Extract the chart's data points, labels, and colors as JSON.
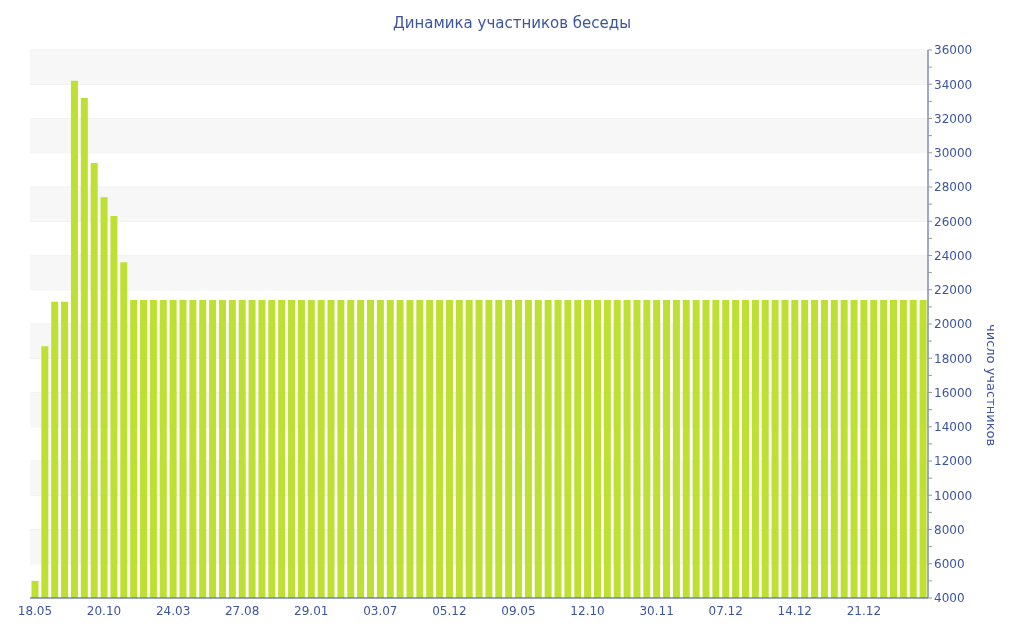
{
  "chart_data": {
    "type": "bar",
    "title": "Динамика участников беседы",
    "ylabel": "число участников",
    "categories": [
      "18.05",
      null,
      null,
      null,
      null,
      null,
      null,
      "20.10",
      null,
      null,
      null,
      null,
      null,
      null,
      "24.03",
      null,
      null,
      null,
      null,
      null,
      null,
      "27.08",
      null,
      null,
      null,
      null,
      null,
      null,
      "29.01",
      null,
      null,
      null,
      null,
      null,
      null,
      "03.07",
      null,
      null,
      null,
      null,
      null,
      null,
      "05.12",
      null,
      null,
      null,
      null,
      null,
      null,
      "09.05",
      null,
      null,
      null,
      null,
      null,
      null,
      "12.10",
      null,
      null,
      null,
      null,
      null,
      null,
      "30.11",
      null,
      null,
      null,
      null,
      null,
      null,
      "07.12",
      null,
      null,
      null,
      null,
      null,
      null,
      "14.12",
      null,
      null,
      null,
      null,
      null,
      null,
      "21.12",
      null,
      null,
      null,
      null,
      null,
      null
    ],
    "values": [
      5000,
      18700,
      21300,
      21300,
      34200,
      33200,
      29400,
      27400,
      26300,
      23600,
      21400,
      21400,
      21400,
      21400,
      21400,
      21400,
      21400,
      21400,
      21400,
      21400,
      21400,
      21400,
      21400,
      21400,
      21400,
      21400,
      21400,
      21400,
      21400,
      21400,
      21400,
      21400,
      21400,
      21400,
      21400,
      21400,
      21400,
      21400,
      21400,
      21400,
      21400,
      21400,
      21400,
      21400,
      21400,
      21400,
      21400,
      21400,
      21400,
      21400,
      21400,
      21400,
      21400,
      21400,
      21400,
      21400,
      21400,
      21400,
      21400,
      21400,
      21400,
      21400,
      21400,
      21400,
      21400,
      21400,
      21400,
      21400,
      21400,
      21400,
      21400,
      21400,
      21400,
      21400,
      21400,
      21400,
      21400,
      21400,
      21400,
      21400,
      21400,
      21400,
      21400,
      21400,
      21400,
      21400,
      21400,
      21400,
      21400,
      21400,
      21400
    ],
    "color": "#bde032",
    "ylim": [
      4000,
      36000
    ],
    "yticks": [
      4000,
      {
        "value": 5000,
        "label": null
      },
      6000,
      {
        "value": 7000,
        "label": null
      },
      8000,
      {
        "value": 9000,
        "label": null
      },
      10000,
      {
        "value": 11000,
        "label": null
      },
      12000,
      {
        "value": 13000,
        "label": null
      },
      14000,
      {
        "value": 15000,
        "label": null
      },
      16000,
      {
        "value": 17000,
        "label": null
      },
      18000,
      {
        "value": 19000,
        "label": null
      },
      20000,
      {
        "value": 21000,
        "label": null
      },
      22000,
      {
        "value": 23000,
        "label": null
      },
      24000,
      {
        "value": 25000,
        "label": null
      },
      26000,
      {
        "value": 27000,
        "label": null
      },
      28000,
      {
        "value": 29000,
        "label": null
      },
      30000,
      {
        "value": 31000,
        "label": null
      },
      32000,
      {
        "value": 33000,
        "label": null
      },
      34000,
      {
        "value": 35000,
        "label": null
      },
      36000
    ],
    "grid": "y",
    "legend": false
  }
}
